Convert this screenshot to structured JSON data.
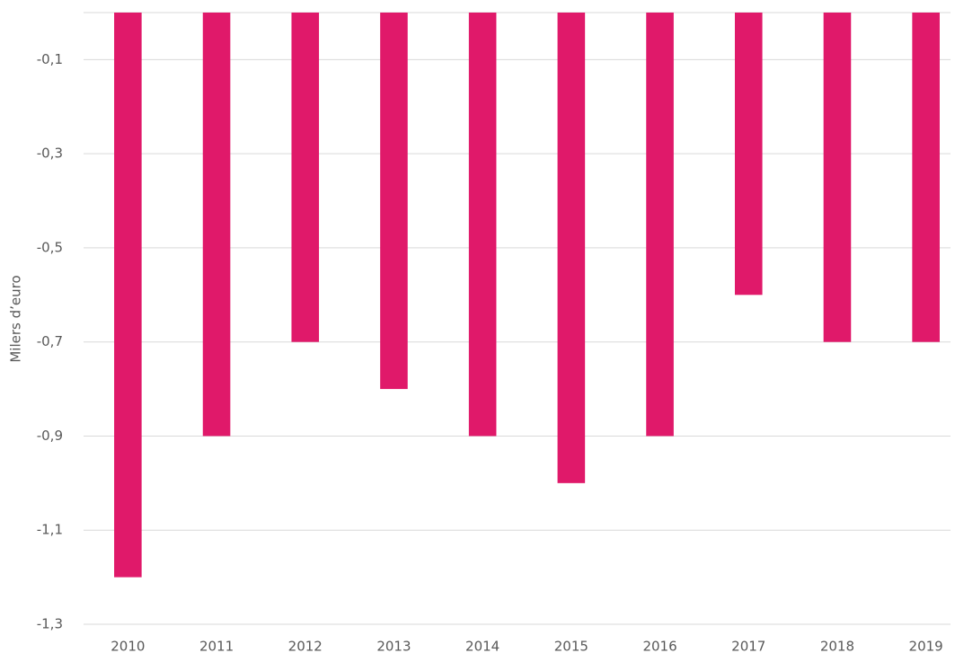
{
  "chart_data": {
    "type": "bar",
    "y_label": "Milers d’euro",
    "categories": [
      "2010",
      "2011",
      "2012",
      "2013",
      "2014",
      "2015",
      "2016",
      "2017",
      "2018",
      "2019"
    ],
    "values": [
      -1.2,
      -0.9,
      -0.7,
      -0.8,
      -0.9,
      -1.0,
      -0.9,
      -0.6,
      -0.7,
      -0.7
    ],
    "color": "#e0196a",
    "ylim": [
      -1.3,
      0
    ],
    "yticks": [
      {
        "value": -0.1,
        "label": "-0,1"
      },
      {
        "value": -0.3,
        "label": "-0,3"
      },
      {
        "value": -0.5,
        "label": "-0,5"
      },
      {
        "value": -0.7,
        "label": "-0,7"
      },
      {
        "value": -0.9,
        "label": "-0,9"
      },
      {
        "value": -1.1,
        "label": "-1,1"
      },
      {
        "value": -1.3,
        "label": "-1,3"
      }
    ],
    "grid": true
  }
}
